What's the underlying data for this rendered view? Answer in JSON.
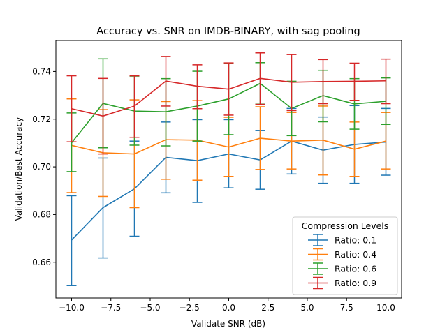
{
  "chart_data": {
    "type": "line",
    "title": "Accuracy vs. SNR on IMDB-BINARY, with sag pooling",
    "xlabel": "Validate SNR (dB)",
    "ylabel": "Validation/Best Accuracy",
    "xlim": [
      -11,
      11
    ],
    "ylim": [
      0.645,
      0.753
    ],
    "xticks": [
      -10,
      -7.5,
      -5,
      -2.5,
      0,
      2.5,
      5,
      7.5,
      10
    ],
    "xtick_labels": [
      "−10.0",
      "−7.5",
      "−5.0",
      "−2.5",
      "0.0",
      "2.5",
      "5.0",
      "7.5",
      "10.0"
    ],
    "yticks": [
      0.66,
      0.68,
      0.7,
      0.72,
      0.74
    ],
    "ytick_labels": [
      "0.66",
      "0.68",
      "0.70",
      "0.72",
      "0.74"
    ],
    "grid": false,
    "legend_title": "Compression Levels",
    "legend_position": "lower-right",
    "x": [
      -10,
      -8,
      -6,
      -4,
      -2,
      0,
      2,
      4,
      6,
      8,
      10
    ],
    "series": [
      {
        "name": "Ratio: 0.1",
        "color": "#1f77b4",
        "values": [
          0.6693,
          0.6829,
          0.6908,
          0.704,
          0.7026,
          0.7054,
          0.7029,
          0.7108,
          0.707,
          0.7094,
          0.7104
        ],
        "err_low": [
          0.6502,
          0.6618,
          0.6709,
          0.6891,
          0.6851,
          0.6912,
          0.6906,
          0.697,
          0.6931,
          0.6931,
          0.6965
        ],
        "err_high": [
          0.6879,
          0.7037,
          0.7108,
          0.7188,
          0.7198,
          0.7198,
          0.7153,
          0.7245,
          0.7209,
          0.7257,
          0.7245
        ]
      },
      {
        "name": "Ratio: 0.4",
        "color": "#ff7f0e",
        "values": [
          0.709,
          0.7059,
          0.7054,
          0.7114,
          0.7112,
          0.7083,
          0.712,
          0.7108,
          0.7112,
          0.7074,
          0.7108
        ],
        "err_low": [
          0.6892,
          0.6876,
          0.6829,
          0.6948,
          0.6944,
          0.696,
          0.6989,
          0.6991,
          0.6966,
          0.696,
          0.6991
        ],
        "err_high": [
          0.7285,
          0.724,
          0.7281,
          0.7274,
          0.7278,
          0.7208,
          0.7252,
          0.7228,
          0.7255,
          0.7188,
          0.7228
        ]
      },
      {
        "name": "Ratio: 0.6",
        "color": "#2ca02c",
        "values": [
          0.7101,
          0.7266,
          0.7234,
          0.7231,
          0.7255,
          0.7285,
          0.735,
          0.7245,
          0.7299,
          0.7264,
          0.7275
        ],
        "err_low": [
          0.698,
          0.708,
          0.7091,
          0.7088,
          0.7108,
          0.7135,
          0.7263,
          0.7131,
          0.7189,
          0.7158,
          0.7178
        ],
        "err_high": [
          0.7226,
          0.7453,
          0.7377,
          0.737,
          0.7401,
          0.7434,
          0.7437,
          0.7359,
          0.7405,
          0.737,
          0.7373
        ]
      },
      {
        "name": "Ratio: 0.9",
        "color": "#d62728",
        "values": [
          0.7244,
          0.7213,
          0.7255,
          0.736,
          0.7338,
          0.7326,
          0.7371,
          0.7355,
          0.7358,
          0.7359,
          0.7361
        ],
        "err_low": [
          0.7105,
          0.7054,
          0.7124,
          0.7255,
          0.7244,
          0.7217,
          0.7262,
          0.7236,
          0.7265,
          0.7279,
          0.7265
        ],
        "err_high": [
          0.7382,
          0.7371,
          0.7382,
          0.7463,
          0.7428,
          0.7436,
          0.7478,
          0.7471,
          0.745,
          0.7435,
          0.7452
        ]
      }
    ]
  }
}
